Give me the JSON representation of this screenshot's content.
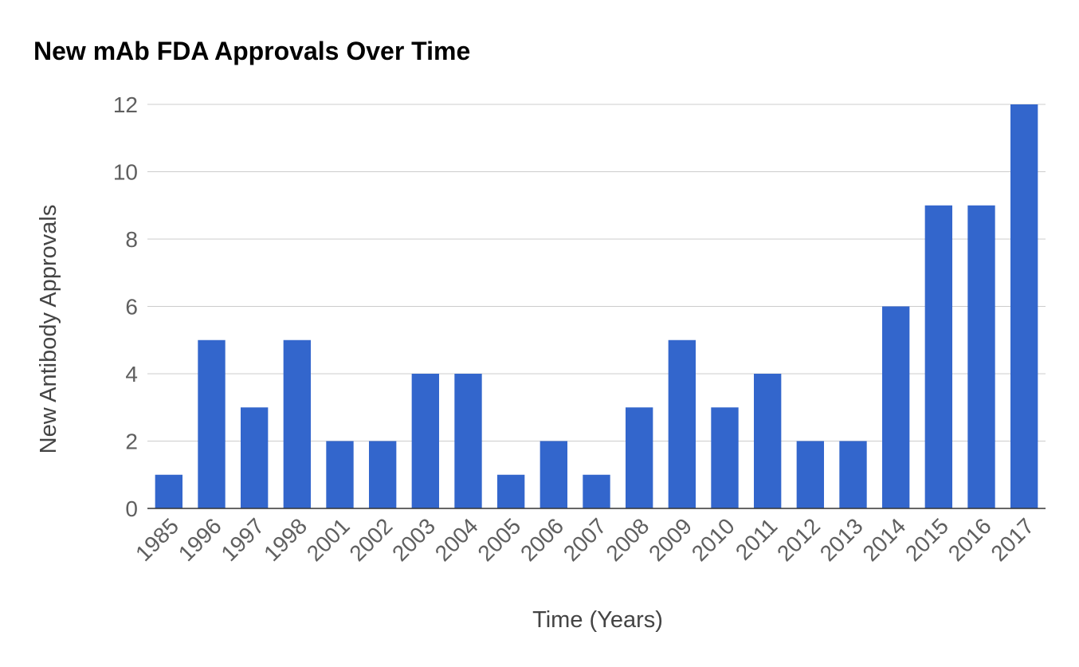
{
  "chart_data": {
    "type": "bar",
    "title": "New mAb FDA Approvals Over Time",
    "xlabel": "Time (Years)",
    "ylabel": "New Antibody Approvals",
    "categories": [
      "1985",
      "1996",
      "1997",
      "1998",
      "2001",
      "2002",
      "2003",
      "2004",
      "2005",
      "2006",
      "2007",
      "2008",
      "2009",
      "2010",
      "2011",
      "2012",
      "2013",
      "2014",
      "2015",
      "2016",
      "2017"
    ],
    "values": [
      1,
      5,
      3,
      5,
      2,
      2,
      4,
      4,
      1,
      2,
      1,
      3,
      5,
      3,
      4,
      2,
      2,
      6,
      9,
      9,
      12
    ],
    "ylim": [
      0,
      12
    ],
    "yticks": [
      "0",
      "2",
      "4",
      "6",
      "8",
      "10",
      "12"
    ],
    "grid": true,
    "legend": "none",
    "bar_color": "#3366cc"
  }
}
